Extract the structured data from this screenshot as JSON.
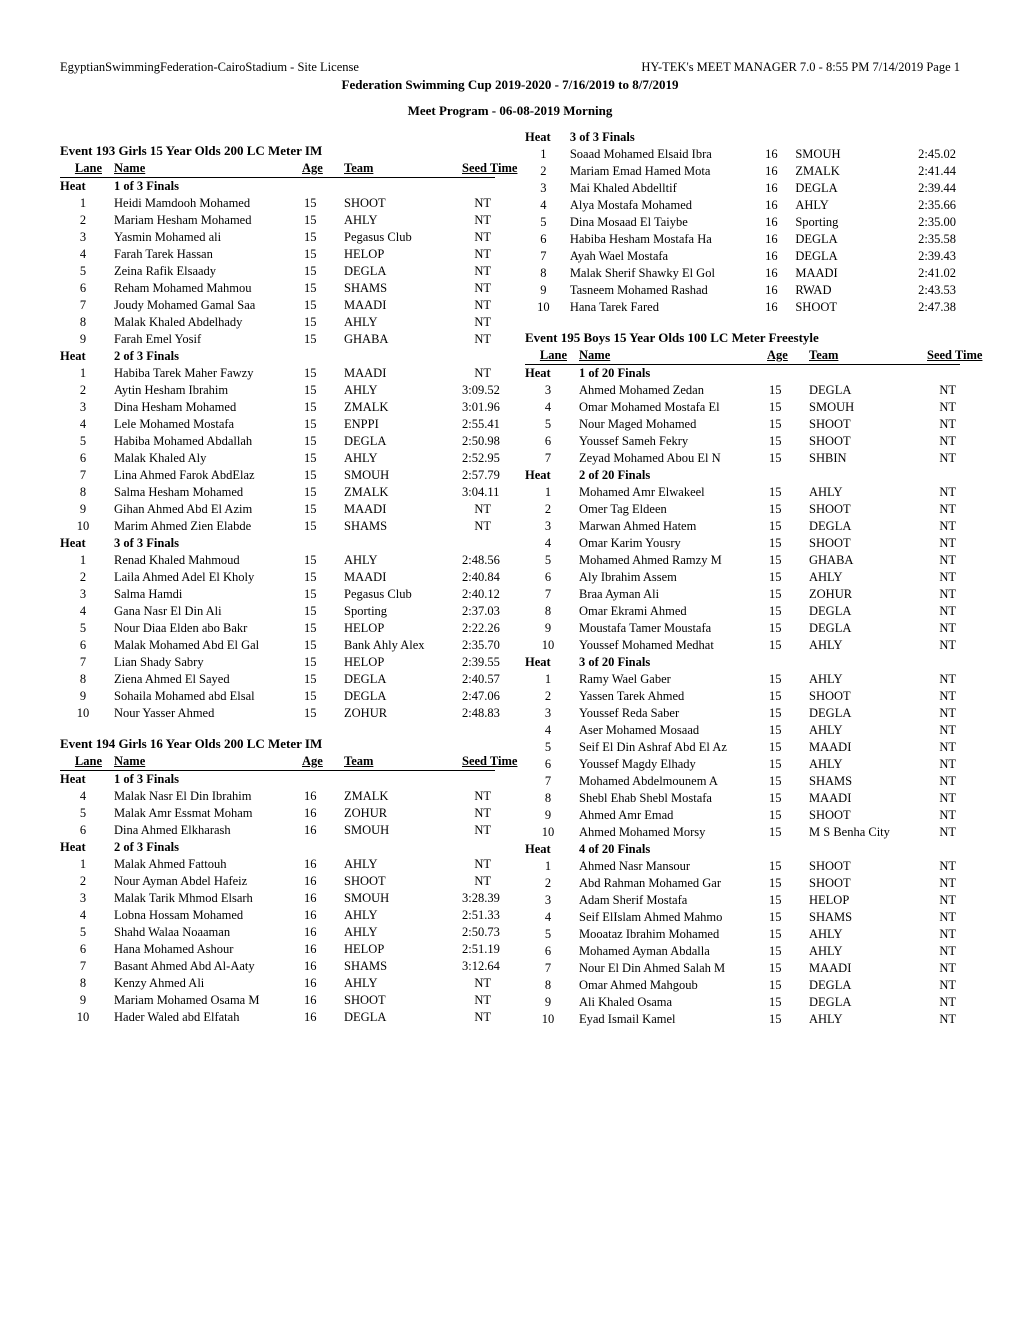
{
  "header": {
    "left": "EgyptianSwimmingFederation-CairoStadium - Site License",
    "right": "HY-TEK's MEET MANAGER 7.0 - 8:55 PM  7/14/2019  Page 1",
    "line1": "Federation Swimming Cup 2019-2020 - 7/16/2019 to 8/7/2019",
    "line2": "Meet Program - 06-08-2019 Morning"
  },
  "labels": {
    "lane": "Lane",
    "name": "Name",
    "age": "Age",
    "team": "Team",
    "seed": "Seed Time",
    "heat": "Heat"
  },
  "events": [
    {
      "title": "Event  193   Girls 15 Year Olds 200 LC Meter IM",
      "showHeader": true,
      "heats": [
        {
          "label": "1 of 3   Finals",
          "entries": [
            {
              "lane": "1",
              "name": "Heidi Mamdooh Mohamed",
              "age": "15",
              "team": "SHOOT",
              "seed": "NT"
            },
            {
              "lane": "2",
              "name": "Mariam Hesham Mohamed",
              "age": "15",
              "team": "AHLY",
              "seed": "NT"
            },
            {
              "lane": "3",
              "name": "Yasmin Mohamed ali",
              "age": "15",
              "team": "Pegasus Club",
              "seed": "NT"
            },
            {
              "lane": "4",
              "name": "Farah Tarek Hassan",
              "age": "15",
              "team": "HELOP",
              "seed": "NT"
            },
            {
              "lane": "5",
              "name": "Zeina Rafik Elsaady",
              "age": "15",
              "team": "DEGLA",
              "seed": "NT"
            },
            {
              "lane": "6",
              "name": "Reham Mohamed Mahmou",
              "age": "15",
              "team": "SHAMS",
              "seed": "NT"
            },
            {
              "lane": "7",
              "name": "Joudy Mohamed Gamal Saa",
              "age": "15",
              "team": "MAADI",
              "seed": "NT"
            },
            {
              "lane": "8",
              "name": "Malak Khaled Abdelhady",
              "age": "15",
              "team": "AHLY",
              "seed": "NT"
            },
            {
              "lane": "9",
              "name": "Farah Emel Yosif",
              "age": "15",
              "team": "GHABA",
              "seed": "NT"
            }
          ]
        },
        {
          "label": "2 of 3   Finals",
          "entries": [
            {
              "lane": "1",
              "name": "Habiba Tarek Maher Fawzy",
              "age": "15",
              "team": "MAADI",
              "seed": "NT"
            },
            {
              "lane": "2",
              "name": "Aytin Hesham Ibrahim",
              "age": "15",
              "team": "AHLY",
              "seed": "3:09.52"
            },
            {
              "lane": "3",
              "name": "Dina Hesham Mohamed",
              "age": "15",
              "team": "ZMALK",
              "seed": "3:01.96"
            },
            {
              "lane": "4",
              "name": "Lele Mohamed Mostafa",
              "age": "15",
              "team": "ENPPI",
              "seed": "2:55.41"
            },
            {
              "lane": "5",
              "name": "Habiba Mohamed Abdallah",
              "age": "15",
              "team": "DEGLA",
              "seed": "2:50.98"
            },
            {
              "lane": "6",
              "name": "Malak Khaled Aly",
              "age": "15",
              "team": "AHLY",
              "seed": "2:52.95"
            },
            {
              "lane": "7",
              "name": "Lina Ahmed Farok AbdElaz",
              "age": "15",
              "team": "SMOUH",
              "seed": "2:57.79"
            },
            {
              "lane": "8",
              "name": "Salma Hesham Mohamed",
              "age": "15",
              "team": "ZMALK",
              "seed": "3:04.11"
            },
            {
              "lane": "9",
              "name": "Gihan Ahmed Abd El Azim ",
              "age": "15",
              "team": "MAADI",
              "seed": "NT"
            },
            {
              "lane": "10",
              "name": "Marim Ahmed Zien Elabde",
              "age": "15",
              "team": "SHAMS",
              "seed": "NT"
            }
          ]
        },
        {
          "label": "3 of 3   Finals",
          "entries": [
            {
              "lane": "1",
              "name": "Renad Khaled Mahmoud",
              "age": "15",
              "team": "AHLY",
              "seed": "2:48.56"
            },
            {
              "lane": "2",
              "name": "Laila Ahmed Adel El Kholy",
              "age": "15",
              "team": "MAADI",
              "seed": "2:40.84"
            },
            {
              "lane": "3",
              "name": "Salma Hamdi",
              "age": "15",
              "team": "Pegasus Club",
              "seed": "2:40.12"
            },
            {
              "lane": "4",
              "name": "Gana Nasr El Din Ali",
              "age": "15",
              "team": "Sporting",
              "seed": "2:37.03"
            },
            {
              "lane": "5",
              "name": "Nour Diaa Elden abo Bakr",
              "age": "15",
              "team": "HELOP",
              "seed": "2:22.26"
            },
            {
              "lane": "6",
              "name": "Malak Mohamed Abd El Gal",
              "age": "15",
              "team": "Bank Ahly Alex",
              "seed": "2:35.70"
            },
            {
              "lane": "7",
              "name": "Lian Shady Sabry",
              "age": "15",
              "team": "HELOP",
              "seed": "2:39.55"
            },
            {
              "lane": "8",
              "name": "Ziena Ahmed El Sayed",
              "age": "15",
              "team": "DEGLA",
              "seed": "2:40.57"
            },
            {
              "lane": "9",
              "name": "Sohaila Mohamed abd Elsal",
              "age": "15",
              "team": "DEGLA",
              "seed": "2:47.06"
            },
            {
              "lane": "10",
              "name": "Nour Yasser Ahmed",
              "age": "15",
              "team": "ZOHUR",
              "seed": "2:48.83"
            }
          ]
        }
      ]
    },
    {
      "title": "Event  194   Girls 16 Year Olds 200 LC Meter IM",
      "showHeader": true,
      "heats": [
        {
          "label": "1 of 3   Finals",
          "entries": [
            {
              "lane": "4",
              "name": "Malak Nasr El Din Ibrahim",
              "age": "16",
              "team": "ZMALK",
              "seed": "NT"
            },
            {
              "lane": "5",
              "name": "Malak Amr Essmat Moham",
              "age": "16",
              "team": "ZOHUR",
              "seed": "NT"
            },
            {
              "lane": "6",
              "name": "Dina Ahmed Elkharash",
              "age": "16",
              "team": "SMOUH",
              "seed": "NT"
            }
          ]
        },
        {
          "label": "2 of 3   Finals",
          "entries": [
            {
              "lane": "1",
              "name": "Malak Ahmed Fattouh",
              "age": "16",
              "team": "AHLY",
              "seed": "NT"
            },
            {
              "lane": "2",
              "name": "Nour Ayman Abdel Hafeiz",
              "age": "16",
              "team": "SHOOT",
              "seed": "NT"
            },
            {
              "lane": "3",
              "name": "Malak Tarik Mhmod Elsarh",
              "age": "16",
              "team": "SMOUH",
              "seed": "3:28.39"
            },
            {
              "lane": "4",
              "name": "Lobna Hossam Mohamed",
              "age": "16",
              "team": "AHLY",
              "seed": "2:51.33"
            },
            {
              "lane": "5",
              "name": "Shahd Walaa Noaaman",
              "age": "16",
              "team": "AHLY",
              "seed": "2:50.73"
            },
            {
              "lane": "6",
              "name": "Hana Mohamed Ashour",
              "age": "16",
              "team": "HELOP",
              "seed": "2:51.19"
            },
            {
              "lane": "7",
              "name": "Basant Ahmed Abd Al-Aaty",
              "age": "16",
              "team": "SHAMS",
              "seed": "3:12.64"
            },
            {
              "lane": "8",
              "name": "Kenzy Ahmed Ali",
              "age": "16",
              "team": "AHLY",
              "seed": "NT"
            },
            {
              "lane": "9",
              "name": "Mariam Mohamed Osama M",
              "age": "16",
              "team": "SHOOT",
              "seed": "NT"
            },
            {
              "lane": "10",
              "name": "Hader Waled abd Elfatah",
              "age": "16",
              "team": "DEGLA",
              "seed": "NT"
            }
          ]
        }
      ]
    },
    {
      "title": "",
      "showHeader": false,
      "heats": [
        {
          "label": "3 of 3   Finals",
          "entries": [
            {
              "lane": "1",
              "name": "Soaad Mohamed Elsaid Ibra",
              "age": "16",
              "team": "SMOUH",
              "seed": "2:45.02"
            },
            {
              "lane": "2",
              "name": "Mariam Emad Hamed Mota",
              "age": "16",
              "team": "ZMALK",
              "seed": "2:41.44"
            },
            {
              "lane": "3",
              "name": "Mai Khaled Abdelltif",
              "age": "16",
              "team": "DEGLA",
              "seed": "2:39.44"
            },
            {
              "lane": "4",
              "name": "Alya Mostafa Mohamed",
              "age": "16",
              "team": "AHLY",
              "seed": "2:35.66"
            },
            {
              "lane": "5",
              "name": "Dina Mosaad El Taiybe",
              "age": "16",
              "team": "Sporting",
              "seed": "2:35.00"
            },
            {
              "lane": "6",
              "name": "Habiba Hesham Mostafa Ha",
              "age": "16",
              "team": "DEGLA",
              "seed": "2:35.58"
            },
            {
              "lane": "7",
              "name": "Ayah Wael Mostafa",
              "age": "16",
              "team": "DEGLA",
              "seed": "2:39.43"
            },
            {
              "lane": "8",
              "name": "Malak Sherif Shawky El Gol",
              "age": "16",
              "team": "MAADI",
              "seed": "2:41.02"
            },
            {
              "lane": "9",
              "name": "Tasneem Mohamed Rashad",
              "age": "16",
              "team": "RWAD",
              "seed": "2:43.53"
            },
            {
              "lane": "10",
              "name": "Hana Tarek Fared",
              "age": "16",
              "team": "SHOOT",
              "seed": "2:47.38"
            }
          ]
        }
      ]
    },
    {
      "title": "Event  195   Boys 15 Year Olds 100 LC Meter Freestyle",
      "showHeader": true,
      "heats": [
        {
          "label": "1 of 20   Finals",
          "entries": [
            {
              "lane": "3",
              "name": "Ahmed Mohamed Zedan",
              "age": "15",
              "team": "DEGLA",
              "seed": "NT"
            },
            {
              "lane": "4",
              "name": "Omar Mohamed Mostafa El",
              "age": "15",
              "team": "SMOUH",
              "seed": "NT"
            },
            {
              "lane": "5",
              "name": "Nour Maged Mohamed",
              "age": "15",
              "team": "SHOOT",
              "seed": "NT"
            },
            {
              "lane": "6",
              "name": "Youssef Sameh Fekry",
              "age": "15",
              "team": "SHOOT",
              "seed": "NT"
            },
            {
              "lane": "7",
              "name": "Zeyad Mohamed Abou El N",
              "age": "15",
              "team": "SHBIN",
              "seed": "NT"
            }
          ]
        },
        {
          "label": "2 of 20   Finals",
          "entries": [
            {
              "lane": "1",
              "name": "Mohamed Amr Elwakeel",
              "age": "15",
              "team": "AHLY",
              "seed": "NT"
            },
            {
              "lane": "2",
              "name": "Omer Tag Eldeen",
              "age": "15",
              "team": "SHOOT",
              "seed": "NT"
            },
            {
              "lane": "3",
              "name": "Marwan Ahmed Hatem",
              "age": "15",
              "team": "DEGLA",
              "seed": "NT"
            },
            {
              "lane": "4",
              "name": "Omar Karim Yousry",
              "age": "15",
              "team": "SHOOT",
              "seed": "NT"
            },
            {
              "lane": "5",
              "name": "Mohamed Ahmed Ramzy M",
              "age": "15",
              "team": "GHABA",
              "seed": "NT"
            },
            {
              "lane": "6",
              "name": "Aly Ibrahim Assem",
              "age": "15",
              "team": "AHLY",
              "seed": "NT"
            },
            {
              "lane": "7",
              "name": "Braa Ayman Ali",
              "age": "15",
              "team": "ZOHUR",
              "seed": "NT"
            },
            {
              "lane": "8",
              "name": "Omar Ekrami Ahmed",
              "age": "15",
              "team": "DEGLA",
              "seed": "NT"
            },
            {
              "lane": "9",
              "name": "Moustafa Tamer Moustafa",
              "age": "15",
              "team": "DEGLA",
              "seed": "NT"
            },
            {
              "lane": "10",
              "name": "Youssef Mohamed Medhat",
              "age": "15",
              "team": "AHLY",
              "seed": "NT"
            }
          ]
        },
        {
          "label": "3 of 20   Finals",
          "entries": [
            {
              "lane": "1",
              "name": "Ramy Wael Gaber",
              "age": "15",
              "team": "AHLY",
              "seed": "NT"
            },
            {
              "lane": "2",
              "name": "Yassen Tarek Ahmed",
              "age": "15",
              "team": "SHOOT",
              "seed": "NT"
            },
            {
              "lane": "3",
              "name": "Youssef Reda Saber",
              "age": "15",
              "team": "DEGLA",
              "seed": "NT"
            },
            {
              "lane": "4",
              "name": "Aser Mohamed Mosaad",
              "age": "15",
              "team": "AHLY",
              "seed": "NT"
            },
            {
              "lane": "5",
              "name": "Seif El Din Ashraf Abd El Az",
              "age": "15",
              "team": "MAADI",
              "seed": "NT"
            },
            {
              "lane": "6",
              "name": "Youssef Magdy Elhady",
              "age": "15",
              "team": "AHLY",
              "seed": "NT"
            },
            {
              "lane": "7",
              "name": "Mohamed Abdelmounem A",
              "age": "15",
              "team": "SHAMS",
              "seed": "NT"
            },
            {
              "lane": "8",
              "name": "Shebl Ehab Shebl Mostafa",
              "age": "15",
              "team": "MAADI",
              "seed": "NT"
            },
            {
              "lane": "9",
              "name": "Ahmed Amr Emad",
              "age": "15",
              "team": "SHOOT",
              "seed": "NT"
            },
            {
              "lane": "10",
              "name": "Ahmed Mohamed Morsy",
              "age": "15",
              "team": "M S Benha City",
              "seed": "NT"
            }
          ]
        },
        {
          "label": "4 of 20   Finals",
          "entries": [
            {
              "lane": "1",
              "name": "Ahmed Nasr Mansour",
              "age": "15",
              "team": "SHOOT",
              "seed": "NT"
            },
            {
              "lane": "2",
              "name": "Abd Rahman Mohamed Gar",
              "age": "15",
              "team": "SHOOT",
              "seed": "NT"
            },
            {
              "lane": "3",
              "name": "Adam  Sherif Mostafa",
              "age": "15",
              "team": "HELOP",
              "seed": "NT"
            },
            {
              "lane": "4",
              "name": "Seif ElIslam Ahmed Mahmo",
              "age": "15",
              "team": "SHAMS",
              "seed": "NT"
            },
            {
              "lane": "5",
              "name": "Mooataz Ibrahim Mohamed",
              "age": "15",
              "team": "AHLY",
              "seed": "NT"
            },
            {
              "lane": "6",
              "name": "Mohamed Ayman Abdalla",
              "age": "15",
              "team": "AHLY",
              "seed": "NT"
            },
            {
              "lane": "7",
              "name": "Nour El Din Ahmed Salah M",
              "age": "15",
              "team": "MAADI",
              "seed": "NT"
            },
            {
              "lane": "8",
              "name": "Omar Ahmed Mahgoub",
              "age": "15",
              "team": "DEGLA",
              "seed": "NT"
            },
            {
              "lane": "9",
              "name": "Ali Khaled Osama",
              "age": "15",
              "team": "DEGLA",
              "seed": "NT"
            },
            {
              "lane": "10",
              "name": "Eyad Ismail Kamel",
              "age": "15",
              "team": "AHLY",
              "seed": "NT"
            }
          ]
        }
      ]
    }
  ]
}
